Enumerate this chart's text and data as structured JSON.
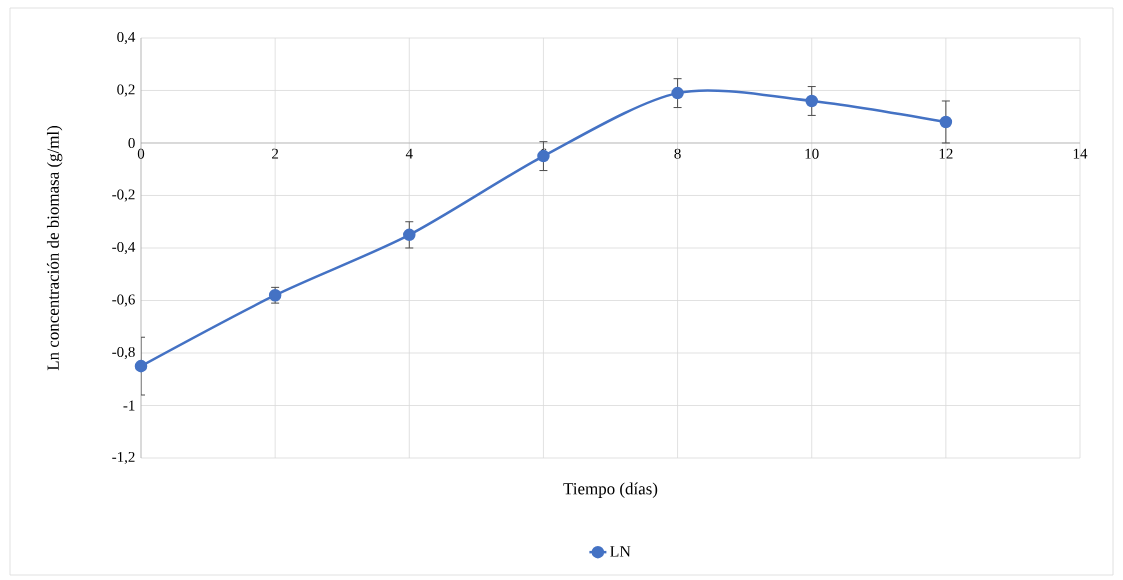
{
  "chart_data": {
    "type": "line",
    "xlabel": "Tiempo (días)",
    "ylabel": "Ln concentración de biomasa (g/ml)",
    "x": [
      0,
      2,
      4,
      6,
      8,
      10,
      12
    ],
    "series": [
      {
        "name": "LN",
        "color": "#4472c4",
        "values": [
          -0.85,
          -0.58,
          -0.35,
          -0.05,
          0.19,
          0.16,
          0.08
        ],
        "errors": [
          0.11,
          0.03,
          0.05,
          0.055,
          0.055,
          0.055,
          0.08
        ]
      }
    ],
    "xlim": [
      0,
      14
    ],
    "xticks": [
      0,
      2,
      4,
      6,
      8,
      10,
      12,
      14
    ],
    "ylim": [
      -1.2,
      0.4
    ],
    "yticks": [
      {
        "value": -1.2,
        "label": "-1,2"
      },
      {
        "value": -1,
        "label": "-1"
      },
      {
        "value": -0.8,
        "label": "-0,8"
      },
      {
        "value": -0.6,
        "label": "-0,6"
      },
      {
        "value": -0.4,
        "label": "-0,4"
      },
      {
        "value": -0.2,
        "label": "-0,2"
      },
      {
        "value": 0,
        "label": "0"
      },
      {
        "value": 0.2,
        "label": "0,2"
      },
      {
        "value": 0.4,
        "label": "0,4"
      }
    ],
    "grid": true,
    "legend": "bottom",
    "marker": "circle",
    "line_style": "solid"
  }
}
